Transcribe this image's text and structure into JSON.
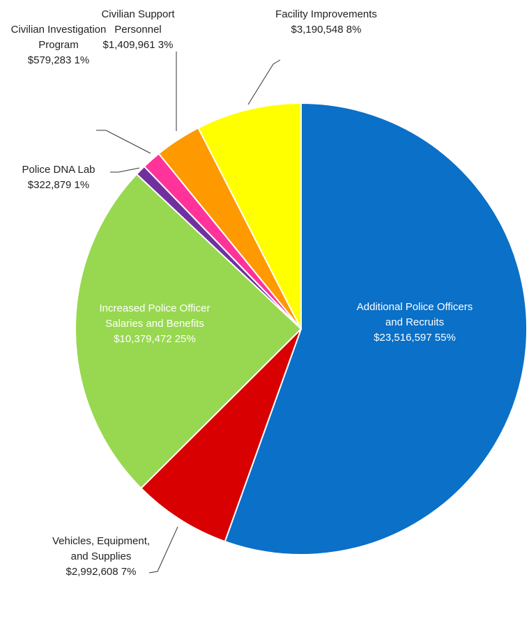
{
  "chart_data": {
    "type": "pie",
    "categories": [
      "Additional Police Officers and Recruits",
      "Vehicles, Equipment, and Supplies",
      "Increased Police Officer Salaries and Benefits",
      "Police DNA Lab",
      "Civilian Investigation Program",
      "Civilian Support Personnel",
      "Facility Improvements"
    ],
    "values": [
      23516597,
      2992608,
      10379472,
      322879,
      579283,
      1409961,
      3190548
    ],
    "value_labels": [
      "$23,516,597",
      "$2,992,608",
      "$10,379,472",
      "$322,879",
      "$579,283",
      "$1,409,961",
      "$3,190,548"
    ],
    "percents": [
      55,
      7,
      25,
      1,
      1,
      3,
      8
    ],
    "percent_labels": [
      "55%",
      "7%",
      "25%",
      "1%",
      "1%",
      "3%",
      "8%"
    ],
    "colors": [
      "#0a70c8",
      "#d80000",
      "#98d850",
      "#7030a0",
      "#ff3399",
      "#ff9900",
      "#ffff00"
    ]
  }
}
